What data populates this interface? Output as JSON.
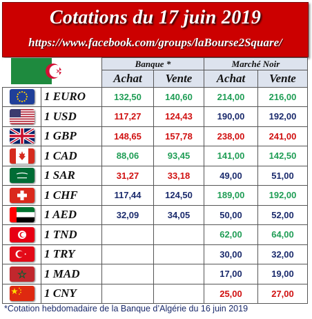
{
  "banner": {
    "title": "Cotations du 17 juin 2019",
    "url": "https://www.facebook.com/groups/laBourse2Square/"
  },
  "header": {
    "groups": [
      "Banque *",
      "Marché Noir"
    ],
    "columns": [
      "Achat",
      "Vente",
      "Achat",
      "Vente"
    ]
  },
  "rows": [
    {
      "currency": "1 EURO",
      "flag": "eu-flag-icon",
      "bank_buy": "132,50",
      "bank_sell": "140,60",
      "black_buy": "214,00",
      "black_sell": "216,00",
      "bank_color": "green"
    },
    {
      "currency": "1 USD",
      "flag": "us-flag-icon",
      "bank_buy": "117,27",
      "bank_sell": "124,43",
      "black_buy": "190,00",
      "black_sell": "192,00",
      "bank_color": "red"
    },
    {
      "currency": "1 GBP",
      "flag": "uk-flag-icon",
      "bank_buy": "148,65",
      "bank_sell": "157,78",
      "black_buy": "238,00",
      "black_sell": "241,00",
      "bank_color": "red"
    },
    {
      "currency": "1 CAD",
      "flag": "ca-flag-icon",
      "bank_buy": "88,06",
      "bank_sell": "93,45",
      "black_buy": "141,00",
      "black_sell": "142,50",
      "bank_color": "green"
    },
    {
      "currency": "1 SAR",
      "flag": "sa-flag-icon",
      "bank_buy": "31,27",
      "bank_sell": "33,18",
      "black_buy": "49,00",
      "black_sell": "51,00",
      "bank_color": "red"
    },
    {
      "currency": "1 CHF",
      "flag": "ch-flag-icon",
      "bank_buy": "117,44",
      "bank_sell": "124,50",
      "black_buy": "189,00",
      "black_sell": "192,00",
      "bank_color": "blue"
    },
    {
      "currency": "1 AED",
      "flag": "ae-flag-icon",
      "bank_buy": "32,09",
      "bank_sell": "34,05",
      "black_buy": "50,00",
      "black_sell": "52,00",
      "bank_color": "blue"
    },
    {
      "currency": "1 TND",
      "flag": "tn-flag-icon",
      "bank_buy": "",
      "bank_sell": "",
      "black_buy": "62,00",
      "black_sell": "64,00",
      "bank_color": "blue"
    },
    {
      "currency": "1 TRY",
      "flag": "tr-flag-icon",
      "bank_buy": "",
      "bank_sell": "",
      "black_buy": "30,00",
      "black_sell": "32,00",
      "bank_color": "blue"
    },
    {
      "currency": "1 MAD",
      "flag": "ma-flag-icon",
      "bank_buy": "",
      "bank_sell": "",
      "black_buy": "17,00",
      "black_sell": "19,00",
      "bank_color": "blue"
    },
    {
      "currency": "1 CNY",
      "flag": "cn-flag-icon",
      "bank_buy": "",
      "bank_sell": "",
      "black_buy": "25,00",
      "black_sell": "27,00",
      "bank_color": "blue"
    }
  ],
  "black_colors": [
    "green",
    "blue",
    "red",
    "green",
    "blue",
    "green",
    "blue",
    "green",
    "blue",
    "blue",
    "red"
  ],
  "footnote": "*Cotation hebdomadaire de la Banque d’Algérie du 16 juin 2019",
  "colors": {
    "banner": "#cc0000",
    "header_bg": "#dde3ee",
    "green": "#1f9d55",
    "red": "#d01010",
    "blue": "#1a2a6c"
  }
}
